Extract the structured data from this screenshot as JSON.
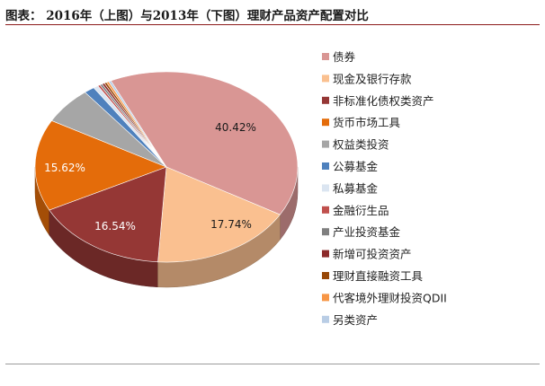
{
  "page": {
    "title": "图表： 2016年（上图）与2013年（下图）理财产品资产配置对比"
  },
  "chart_data": {
    "type": "pie",
    "categories": [
      "债券",
      "现金及银行存款",
      "非标准化债权类资产",
      "货币市场工具",
      "权益类投资",
      "公募基金",
      "私募基金",
      "金融衍生品",
      "产业投资基金",
      "新增可投资资产",
      "理财直接融资工具",
      "代客境外理财投资QDII",
      "另类资产"
    ],
    "values": [
      40.42,
      17.74,
      16.54,
      15.62,
      6.3,
      1.3,
      0.6,
      0.3,
      0.3,
      0.3,
      0.3,
      0.3,
      0.3
    ],
    "value_labels": [
      "40.42%",
      "17.74%",
      "16.54%",
      "15.62%",
      "",
      "",
      "",
      "",
      "",
      "",
      "",
      "",
      ""
    ],
    "colors": [
      "#d99694",
      "#fac090",
      "#953735",
      "#e46c0a",
      "#a6a6a6",
      "#4f81bd",
      "#dbe5f1",
      "#c0504d",
      "#7f7f7f",
      "#8c2a2a",
      "#984807",
      "#f79646",
      "#b9cde5"
    ],
    "legend_position": "right",
    "style": "3d-tilted"
  }
}
